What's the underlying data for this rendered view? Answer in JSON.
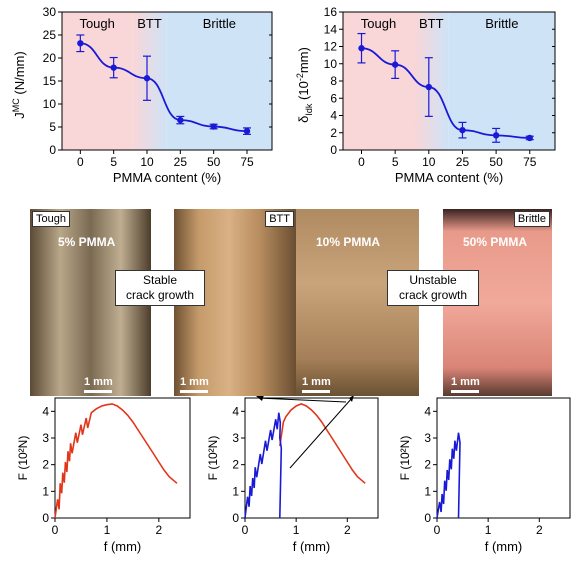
{
  "chart_data": [
    {
      "type": "line",
      "id": "jmc",
      "xlabel": "PMMA content (%)",
      "ylabel_main": "J",
      "ylabel_sup": "MC",
      "ylabel_unit": " (N/mm)",
      "categories": [
        "0",
        "5",
        "10",
        "25",
        "50",
        "75"
      ],
      "values": [
        23.2,
        17.9,
        15.6,
        6.5,
        5.1,
        4.1
      ],
      "errors": [
        1.8,
        2.2,
        4.8,
        0.8,
        0.5,
        0.7
      ],
      "ylim": [
        0,
        30
      ],
      "yticks": [
        "0",
        "5",
        "10",
        "15",
        "20",
        "25",
        "30"
      ],
      "regions": [
        "Tough",
        "BTT",
        "Brittle"
      ],
      "region_colors": [
        "#f9d6d8",
        "#cfe3f6"
      ]
    },
    {
      "type": "line",
      "id": "ddk",
      "xlabel": "PMMA content (%)",
      "ylabel_main": "δ",
      "ylabel_sub": "Idk",
      "ylabel_unit": " (10",
      "ylabel_sup": "-2",
      "ylabel_unit2": "mm)",
      "categories": [
        "0",
        "5",
        "10",
        "25",
        "50",
        "75"
      ],
      "values": [
        11.8,
        9.9,
        7.3,
        2.3,
        1.7,
        1.4
      ],
      "errors": [
        1.7,
        1.6,
        3.4,
        0.9,
        0.8,
        0.2
      ],
      "ylim": [
        0,
        16
      ],
      "yticks": [
        "0",
        "2",
        "4",
        "6",
        "8",
        "10",
        "12",
        "14",
        "16"
      ],
      "regions": [
        "Tough",
        "BTT",
        "Brittle"
      ],
      "region_colors": [
        "#f9d6d8",
        "#cfe3f6"
      ]
    },
    {
      "type": "line",
      "id": "fd1",
      "xlabel": "f (mm)",
      "ylabel": "F (10²N)",
      "xlim": [
        0,
        2.6
      ],
      "ylim": [
        0,
        4.5
      ],
      "xticks": [
        "0",
        "1",
        "2"
      ],
      "yticks": [
        "0",
        "1",
        "2",
        "3",
        "4"
      ],
      "series_color": "#e2361a",
      "x": [
        0.0,
        0.05,
        0.1,
        0.15,
        0.2,
        0.25,
        0.3,
        0.4,
        0.5,
        0.6,
        0.7,
        0.8,
        0.9,
        1.0,
        1.1,
        1.2,
        1.3,
        1.4,
        1.5,
        1.6,
        1.7,
        1.8,
        1.9,
        2.0,
        2.1,
        2.2,
        2.35
      ],
      "y": [
        0.0,
        0.7,
        1.3,
        1.7,
        2.1,
        2.5,
        2.8,
        3.2,
        3.5,
        3.75,
        3.95,
        4.1,
        4.2,
        4.25,
        4.28,
        4.2,
        4.05,
        3.85,
        3.6,
        3.3,
        3.0,
        2.7,
        2.4,
        2.1,
        1.8,
        1.55,
        1.3
      ]
    },
    {
      "type": "line",
      "id": "fd2",
      "xlabel": "f (mm)",
      "ylabel": "F (10²N)",
      "xlim": [
        0,
        2.6
      ],
      "ylim": [
        0,
        4.5
      ],
      "xticks": [
        "0",
        "1",
        "2"
      ],
      "yticks": [
        "0",
        "1",
        "2",
        "3",
        "4"
      ],
      "series": [
        {
          "color": "#e2361a",
          "x": [
            0.68,
            0.75,
            0.8,
            0.9,
            1.0,
            1.1,
            1.2,
            1.3,
            1.4,
            1.5,
            1.6,
            1.7,
            1.8,
            1.9,
            2.0,
            2.1,
            2.2,
            2.35
          ],
          "y": [
            2.7,
            3.6,
            3.8,
            4.05,
            4.2,
            4.28,
            4.2,
            4.05,
            3.85,
            3.6,
            3.3,
            3.0,
            2.7,
            2.4,
            2.1,
            1.8,
            1.55,
            1.3
          ]
        },
        {
          "color": "#1a1ad6",
          "x": [
            0.0,
            0.05,
            0.1,
            0.15,
            0.2,
            0.3,
            0.4,
            0.5,
            0.6,
            0.66,
            0.68,
            0.68
          ],
          "y": [
            0.0,
            0.8,
            1.2,
            1.5,
            1.9,
            2.4,
            2.9,
            3.3,
            3.7,
            3.95,
            3.0,
            0.0
          ]
        }
      ]
    },
    {
      "type": "line",
      "id": "fd3",
      "xlabel": "f (mm)",
      "ylabel": "F (10²N)",
      "xlim": [
        0,
        2.6
      ],
      "ylim": [
        0,
        4.5
      ],
      "xticks": [
        "0",
        "1",
        "2"
      ],
      "yticks": [
        "0",
        "1",
        "2",
        "3",
        "4"
      ],
      "series_color": "#1a1ad6",
      "x": [
        0.0,
        0.05,
        0.1,
        0.15,
        0.2,
        0.25,
        0.3,
        0.35,
        0.42,
        0.42
      ],
      "y": [
        0.0,
        0.6,
        0.9,
        1.4,
        1.8,
        2.2,
        2.6,
        2.9,
        3.2,
        0.0
      ]
    }
  ],
  "photos": [
    {
      "badge": "Tough",
      "label": "5% PMMA",
      "scale": "1 mm"
    },
    {
      "badge": "BTT",
      "label": "",
      "scale": "1 mm"
    },
    {
      "badge": "",
      "label": "10% PMMA",
      "scale": "1 mm"
    },
    {
      "badge": "Brittle",
      "label": "50% PMMA",
      "scale": "1 mm"
    }
  ],
  "callouts": {
    "stable_line1": "Stable",
    "stable_line2": "crack growth",
    "unstable_line1": "Unstable",
    "unstable_line2": "crack growth"
  },
  "colors": {
    "line_blue": "#1a1ad6",
    "line_red": "#e2361a",
    "tough_bg": "#f9d6d8",
    "brittle_bg": "#cfe3f6"
  }
}
